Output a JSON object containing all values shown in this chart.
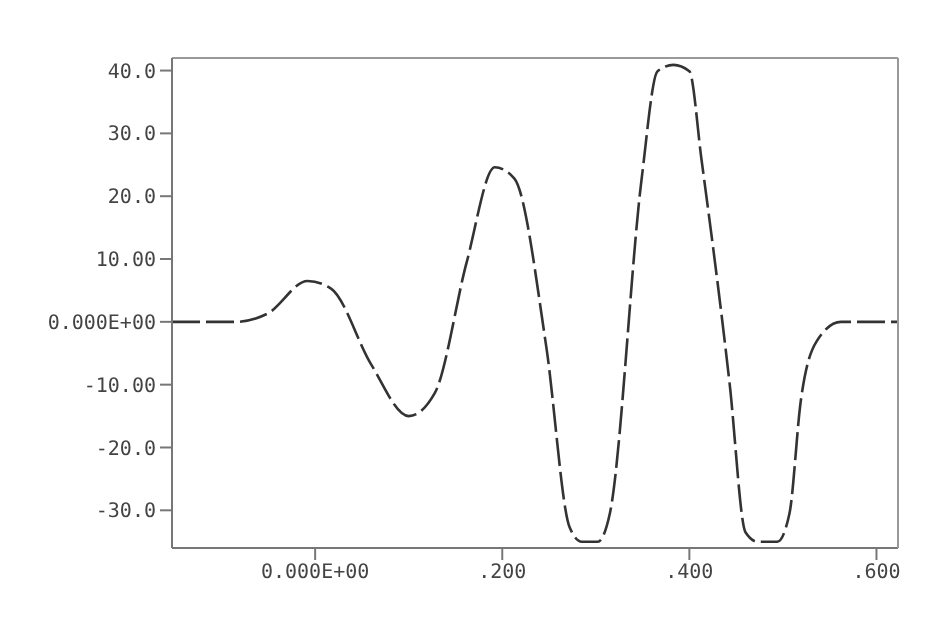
{
  "chart_data": {
    "type": "line",
    "x": [
      -0.153,
      -0.085,
      -0.051,
      -0.008,
      0.017,
      0.06,
      0.1,
      0.128,
      0.162,
      0.192,
      0.213,
      0.247,
      0.272,
      0.285,
      0.302,
      0.315,
      0.349,
      0.366,
      0.383,
      0.4,
      0.413,
      0.443,
      0.46,
      0.473,
      0.494,
      0.507,
      0.519,
      0.536,
      0.562,
      0.623
    ],
    "series": [
      {
        "color": "#333333",
        "values": [
          0,
          0,
          1.3,
          6.5,
          5.3,
          -6.8,
          -15,
          -11.3,
          9.5,
          24.6,
          22.8,
          -3.9,
          -32.7,
          -35,
          -35,
          -30.5,
          22.8,
          39.9,
          40.9,
          39.9,
          25.8,
          -9.8,
          -33.5,
          -35,
          -35,
          -30.5,
          -12.7,
          -3.1,
          0,
          0
        ]
      }
    ],
    "xlim": [
      -0.153,
      0.623
    ],
    "xticks": [
      {
        "value": 0,
        "label": "0.000E+00"
      },
      {
        "value": 0.2,
        "label": ".200"
      },
      {
        "value": 0.4,
        "label": ".400"
      },
      {
        "value": 0.6,
        "label": ".600"
      }
    ],
    "ylim": [
      -36,
      42
    ],
    "yticks": [
      {
        "value": 40,
        "label": "40.0"
      },
      {
        "value": 30,
        "label": "30.0"
      },
      {
        "value": 20,
        "label": "20.0"
      },
      {
        "value": 10,
        "label": "10.00"
      },
      {
        "value": 0,
        "label": "0.000E+00"
      },
      {
        "value": -10,
        "label": "-10.00"
      },
      {
        "value": -20,
        "label": "-20.0"
      },
      {
        "value": -30,
        "label": "-30.0"
      }
    ],
    "grid": false,
    "marker": "none",
    "line_style": "dashed"
  }
}
